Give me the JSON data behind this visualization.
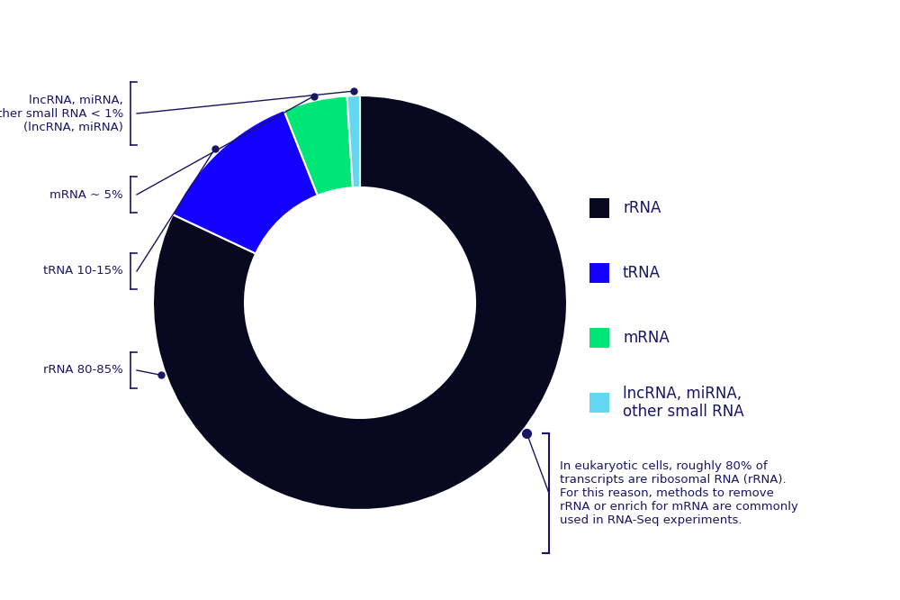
{
  "slices": [
    {
      "label": "rRNA",
      "value": 82,
      "color": "#080820"
    },
    {
      "label": "tRNA",
      "value": 12,
      "color": "#1400ff"
    },
    {
      "label": "mRNA",
      "value": 5,
      "color": "#00e676"
    },
    {
      "label": "lncRNA_miRNA",
      "value": 1,
      "color": "#64d8f0"
    }
  ],
  "background_color": "#ffffff",
  "text_color": "#1a1464",
  "legend_labels": [
    "rRNA",
    "tRNA",
    "mRNA",
    "lncRNA, miRNA,\nother small RNA"
  ],
  "legend_colors": [
    "#080820",
    "#1400ff",
    "#00e676",
    "#64d8f0"
  ],
  "bottom_annotation": "In eukaryotic cells, roughly 80% of\ntranscripts are ribosomal RNA (rRNA).\nFor this reason, methods to remove\nrRNA or enrich for mRNA are commonly\nused in RNA-Seq experiments.",
  "font_size_annotation": 10,
  "font_size_legend": 12
}
